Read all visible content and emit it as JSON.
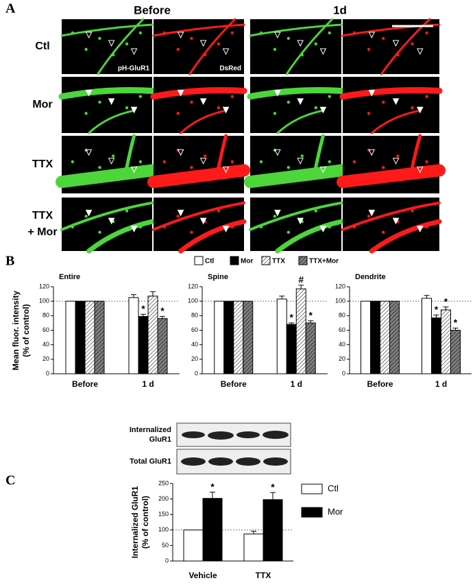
{
  "panel_labels": [
    "A",
    "B",
    "C"
  ],
  "panel_a": {
    "columns": [
      "Before",
      "1d"
    ],
    "rows": [
      [
        "Ctl"
      ],
      [
        "Mor"
      ],
      [
        "TTX"
      ],
      [
        "TTX",
        "+ Mor"
      ]
    ],
    "channel_labels": [
      "pH-GluR1",
      "DsRed"
    ]
  },
  "panel_b": {
    "legend": [
      {
        "name": "Ctl",
        "color": "#ffffff"
      },
      {
        "name": "Mor",
        "color": "#000000"
      },
      {
        "name": "TTX",
        "color": "#ffffff",
        "hatch": "#555555"
      },
      {
        "name": "TTX+Mor",
        "color": "#808080",
        "hatch": "#222222"
      }
    ],
    "y_label": [
      "Mean fluor. intensity",
      "(% of control)"
    ]
  },
  "panel_c": {
    "blot_labels": [
      [
        "Internalized",
        "GluR1"
      ],
      [
        "Total GluR1"
      ]
    ]
  },
  "chart_data": [
    {
      "type": "bar",
      "title": "Entire",
      "categories": [
        "Before",
        "1 d"
      ],
      "ylim": [
        0,
        120
      ],
      "yticks": [
        0,
        20,
        40,
        60,
        80,
        100,
        120
      ],
      "reference_line": 100,
      "series": [
        {
          "values": [
            100,
            105
          ],
          "errors": [
            null,
            4
          ],
          "annotations": [
            null,
            null
          ]
        },
        {
          "values": [
            100,
            79
          ],
          "errors": [
            null,
            3
          ],
          "annotations": [
            null,
            "*"
          ]
        },
        {
          "values": [
            100,
            107
          ],
          "errors": [
            null,
            6
          ],
          "annotations": [
            null,
            null
          ]
        },
        {
          "values": [
            100,
            76
          ],
          "errors": [
            null,
            3
          ],
          "annotations": [
            null,
            "*"
          ]
        }
      ]
    },
    {
      "type": "bar",
      "title": "Spine",
      "categories": [
        "Before",
        "1 d"
      ],
      "ylim": [
        0,
        120
      ],
      "yticks": [
        0,
        20,
        40,
        60,
        80,
        100,
        120
      ],
      "reference_line": 100,
      "series": [
        {
          "values": [
            100,
            103
          ],
          "errors": [
            null,
            4
          ],
          "annotations": [
            null,
            null
          ]
        },
        {
          "values": [
            100,
            68
          ],
          "errors": [
            null,
            2
          ],
          "annotations": [
            null,
            "*"
          ]
        },
        {
          "values": [
            100,
            117
          ],
          "errors": [
            null,
            5
          ],
          "annotations": [
            null,
            "#"
          ]
        },
        {
          "values": [
            100,
            70
          ],
          "errors": [
            null,
            3
          ],
          "annotations": [
            null,
            "*"
          ]
        }
      ]
    },
    {
      "type": "bar",
      "title": "Dendrite",
      "categories": [
        "Before",
        "1 d"
      ],
      "ylim": [
        0,
        120
      ],
      "yticks": [
        0,
        20,
        40,
        60,
        80,
        100,
        120
      ],
      "reference_line": 100,
      "series": [
        {
          "values": [
            100,
            104
          ],
          "errors": [
            null,
            4
          ],
          "annotations": [
            null,
            null
          ]
        },
        {
          "values": [
            100,
            77
          ],
          "errors": [
            null,
            4
          ],
          "annotations": [
            null,
            "*"
          ]
        },
        {
          "values": [
            100,
            88
          ],
          "errors": [
            null,
            4
          ],
          "annotations": [
            null,
            "*"
          ]
        },
        {
          "values": [
            100,
            60
          ],
          "errors": [
            null,
            3
          ],
          "annotations": [
            null,
            "*"
          ]
        }
      ]
    },
    {
      "type": "bar",
      "categories": [
        "Vehicle",
        "TTX"
      ],
      "ylim": [
        0,
        250
      ],
      "yticks": [
        0,
        50,
        100,
        150,
        200,
        250
      ],
      "reference_line": 100,
      "y_label": [
        "Internalized GluR1",
        "(% of control)"
      ],
      "legend_position": "right",
      "series": [
        {
          "name": "Ctl",
          "color": "#ffffff",
          "values": [
            100,
            87
          ],
          "errors": [
            null,
            9
          ],
          "annotations": [
            null,
            null
          ]
        },
        {
          "name": "Mor",
          "color": "#000000",
          "values": [
            202,
            198
          ],
          "errors": [
            20,
            23
          ],
          "annotations": [
            "*",
            "*"
          ]
        }
      ]
    }
  ]
}
